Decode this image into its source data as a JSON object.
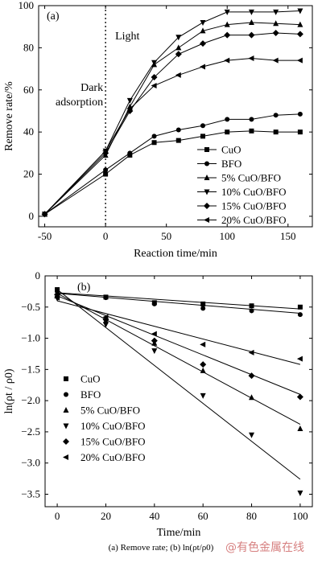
{
  "caption": "(a) Remove rate; (b) ln(ρt/ρ0)",
  "watermark": "@有色金属在线",
  "chart_data": [
    {
      "type": "line",
      "panel_label": "(a)",
      "xlabel": "Reaction time/min",
      "ylabel": "Remove rate/%",
      "xlim": [
        -55,
        170
      ],
      "ylim": [
        -5,
        100
      ],
      "xticks": [
        -50,
        0,
        50,
        100,
        150
      ],
      "yticks": [
        0,
        20,
        40,
        60,
        80,
        100
      ],
      "annotations": [
        "Light",
        "Dark",
        "adsorption"
      ],
      "divider_x": 0,
      "legend_position": "bottom-right",
      "series": [
        {
          "name": "CuO",
          "marker": "square",
          "x": [
            -50,
            0,
            20,
            40,
            60,
            80,
            100,
            120,
            140,
            160
          ],
          "y": [
            1,
            20,
            29,
            35,
            36,
            38,
            40,
            40.5,
            40,
            40
          ]
        },
        {
          "name": "BFO",
          "marker": "circle",
          "x": [
            -50,
            0,
            20,
            40,
            60,
            80,
            100,
            120,
            140,
            160
          ],
          "y": [
            1,
            22,
            30,
            38,
            41,
            43,
            46,
            46,
            48,
            48.5
          ]
        },
        {
          "name": "5% CuO/BFO",
          "marker": "triangle-up",
          "x": [
            -50,
            0,
            20,
            40,
            60,
            80,
            100,
            120,
            140,
            160
          ],
          "y": [
            1,
            29,
            52,
            72,
            80,
            88,
            91,
            92,
            91.5,
            91
          ]
        },
        {
          "name": "10% CuO/BFO",
          "marker": "triangle-down",
          "x": [
            -50,
            0,
            20,
            40,
            60,
            80,
            100,
            120,
            140,
            160
          ],
          "y": [
            1,
            31,
            55,
            73,
            85,
            92,
            97,
            97,
            97,
            97.5
          ]
        },
        {
          "name": "15% CuO/BFO",
          "marker": "diamond",
          "x": [
            -50,
            0,
            20,
            40,
            60,
            80,
            100,
            120,
            140,
            160
          ],
          "y": [
            1,
            30,
            50,
            66,
            77,
            82,
            86,
            86,
            87,
            86.5
          ]
        },
        {
          "name": "20% CuO/BFO",
          "marker": "triangle-left",
          "x": [
            -50,
            0,
            20,
            40,
            60,
            80,
            100,
            120,
            140,
            160
          ],
          "y": [
            1,
            31,
            51,
            62,
            67,
            71,
            74,
            75,
            74,
            74
          ]
        }
      ]
    },
    {
      "type": "scatter",
      "panel_label": "(b)",
      "xlabel": "Time/min",
      "ylabel": "ln(ρt / ρ0)",
      "xlim": [
        -5,
        105
      ],
      "ylim": [
        -3.7,
        0
      ],
      "xticks": [
        0,
        20,
        40,
        60,
        80,
        100
      ],
      "yticks": [
        0,
        -0.5,
        -1.0,
        -1.5,
        -2.0,
        -2.5,
        -3.0,
        -3.5
      ],
      "legend_position": "bottom-left",
      "series": [
        {
          "name": "CuO",
          "marker": "square",
          "x": [
            0,
            20,
            40,
            60,
            80,
            100
          ],
          "y": [
            -0.22,
            -0.34,
            -0.43,
            -0.45,
            -0.48,
            -0.5
          ],
          "fit": [
            [
              0,
              -0.27
            ],
            [
              100,
              -0.53
            ]
          ]
        },
        {
          "name": "BFO",
          "marker": "circle",
          "x": [
            0,
            20,
            40,
            60,
            80,
            100
          ],
          "y": [
            -0.25,
            -0.35,
            -0.45,
            -0.52,
            -0.56,
            -0.62
          ],
          "fit": [
            [
              0,
              -0.28
            ],
            [
              100,
              -0.6
            ]
          ]
        },
        {
          "name": "5% CuO/BFO",
          "marker": "triangle-up",
          "x": [
            0,
            20,
            40,
            60,
            80,
            100
          ],
          "y": [
            -0.32,
            -0.72,
            -1.08,
            -1.52,
            -1.95,
            -2.45
          ],
          "fit": [
            [
              0,
              -0.28
            ],
            [
              100,
              -2.38
            ]
          ]
        },
        {
          "name": "10% CuO/BFO",
          "marker": "triangle-down",
          "x": [
            0,
            20,
            40,
            60,
            80,
            100
          ],
          "y": [
            -0.36,
            -0.78,
            -1.2,
            -1.92,
            -2.55,
            -3.48
          ],
          "fit": [
            [
              0,
              -0.22
            ],
            [
              100,
              -3.26
            ]
          ]
        },
        {
          "name": "15% CuO/BFO",
          "marker": "diamond",
          "x": [
            0,
            20,
            40,
            60,
            80,
            100
          ],
          "y": [
            -0.3,
            -0.7,
            -1.04,
            -1.42,
            -1.6,
            -1.94
          ],
          "fit": [
            [
              0,
              -0.32
            ],
            [
              100,
              -1.9
            ]
          ]
        },
        {
          "name": "20% CuO/BFO",
          "marker": "triangle-left",
          "x": [
            0,
            20,
            40,
            60,
            80,
            100
          ],
          "y": [
            -0.35,
            -0.66,
            -0.93,
            -1.1,
            -1.23,
            -1.33
          ],
          "fit": [
            [
              0,
              -0.4
            ],
            [
              100,
              -1.42
            ]
          ]
        }
      ]
    }
  ]
}
